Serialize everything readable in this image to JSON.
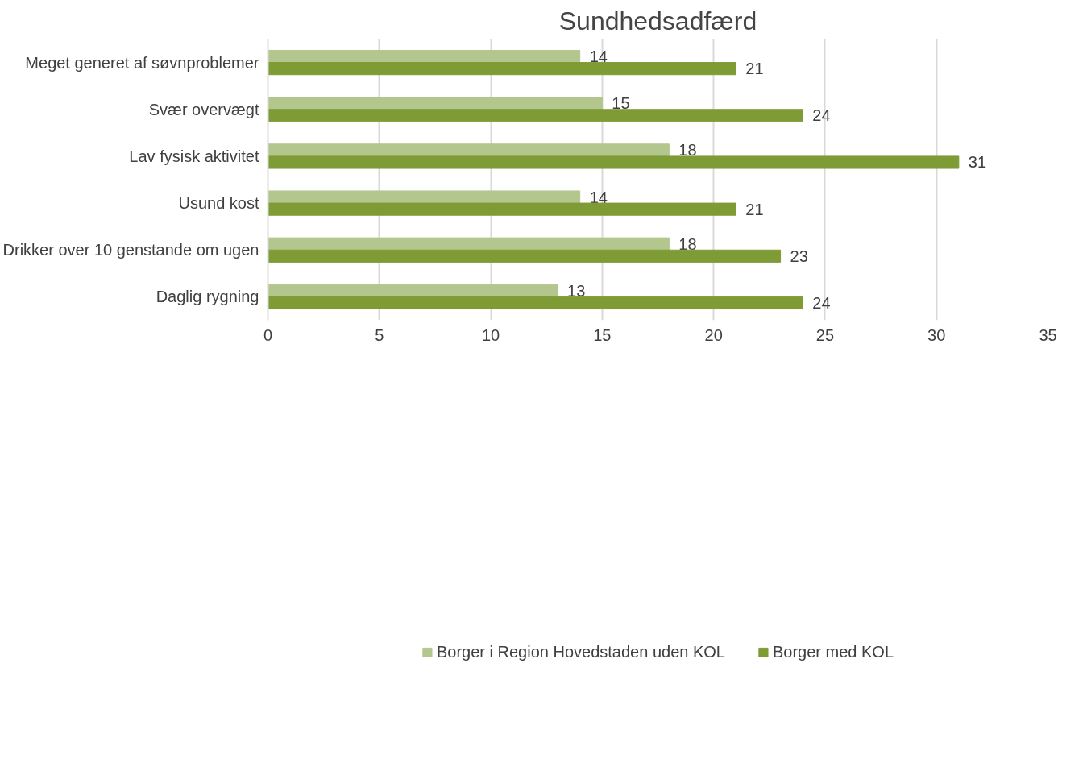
{
  "chart_data": {
    "type": "bar",
    "orientation": "horizontal",
    "title": "Sundhedsadfærd",
    "categories": [
      "Meget generet af søvnproblemer",
      "Svær overvægt",
      "Lav fysisk aktivitet",
      "Usund kost",
      "Drikker over 10 genstande om ugen",
      "Daglig rygning"
    ],
    "series": [
      {
        "name": "Borger i Region Hovedstaden uden KOL",
        "color": "#b3c68d",
        "values": [
          14,
          15,
          18,
          14,
          18,
          13
        ]
      },
      {
        "name": "Borger med KOL",
        "color": "#7f9b36",
        "values": [
          21,
          24,
          31,
          21,
          23,
          24
        ]
      }
    ],
    "xlim": [
      0,
      35
    ],
    "xticks": [
      0,
      5,
      10,
      15,
      20,
      25,
      30,
      35
    ],
    "grid": "x",
    "legend": "bottom",
    "data_labels": true
  }
}
